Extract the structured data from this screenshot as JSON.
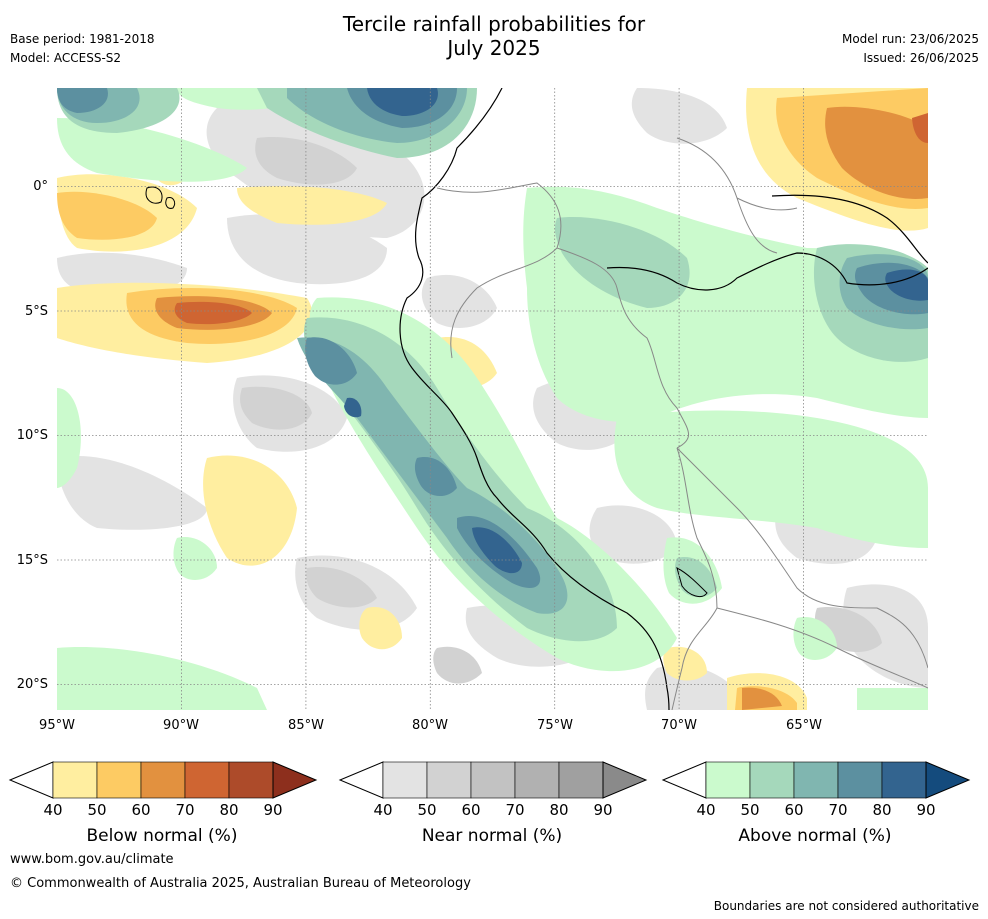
{
  "header": {
    "title_line1": "Tercile rainfall probabilities for",
    "title_line2": "July 2025",
    "base_period": "Base period: 1981-2018",
    "model": "Model: ACCESS-S2",
    "model_run": "Model run: 23/06/2025",
    "issued": "Issued: 26/06/2025"
  },
  "map": {
    "lat_labels": [
      "0°",
      "5°S",
      "10°S",
      "15°S",
      "20°S"
    ],
    "lon_labels": [
      "95°W",
      "90°W",
      "85°W",
      "80°W",
      "75°W",
      "70°W",
      "65°W"
    ],
    "lon_range": [
      -95,
      -60
    ],
    "lat_range": [
      -21,
      4
    ]
  },
  "colorbars": [
    {
      "title": "Below normal (%)",
      "ticks": [
        "40",
        "50",
        "60",
        "70",
        "80",
        "90"
      ],
      "colors": [
        "#ffeea0",
        "#fdcb63",
        "#e2913f",
        "#cf6532",
        "#ad4b2a",
        "#8d2f1d"
      ]
    },
    {
      "title": "Near normal (%)",
      "ticks": [
        "40",
        "50",
        "60",
        "70",
        "80",
        "90"
      ],
      "colors": [
        "#e3e3e3",
        "#d2d2d2",
        "#c2c2c2",
        "#b1b1b1",
        "#a0a0a0",
        "#8a8a8a"
      ]
    },
    {
      "title": "Above normal (%)",
      "ticks": [
        "40",
        "50",
        "60",
        "70",
        "80",
        "90"
      ],
      "colors": [
        "#cbfacd",
        "#a5d8bb",
        "#80b6b0",
        "#5c90a0",
        "#33648f",
        "#144b7d"
      ]
    }
  ],
  "footer": {
    "website": "www.bom.gov.au/climate",
    "copyright": "© Commonwealth of Australia 2025, Australian Bureau of Meteorology",
    "disclaimer": "Boundaries are not considered authoritative"
  }
}
